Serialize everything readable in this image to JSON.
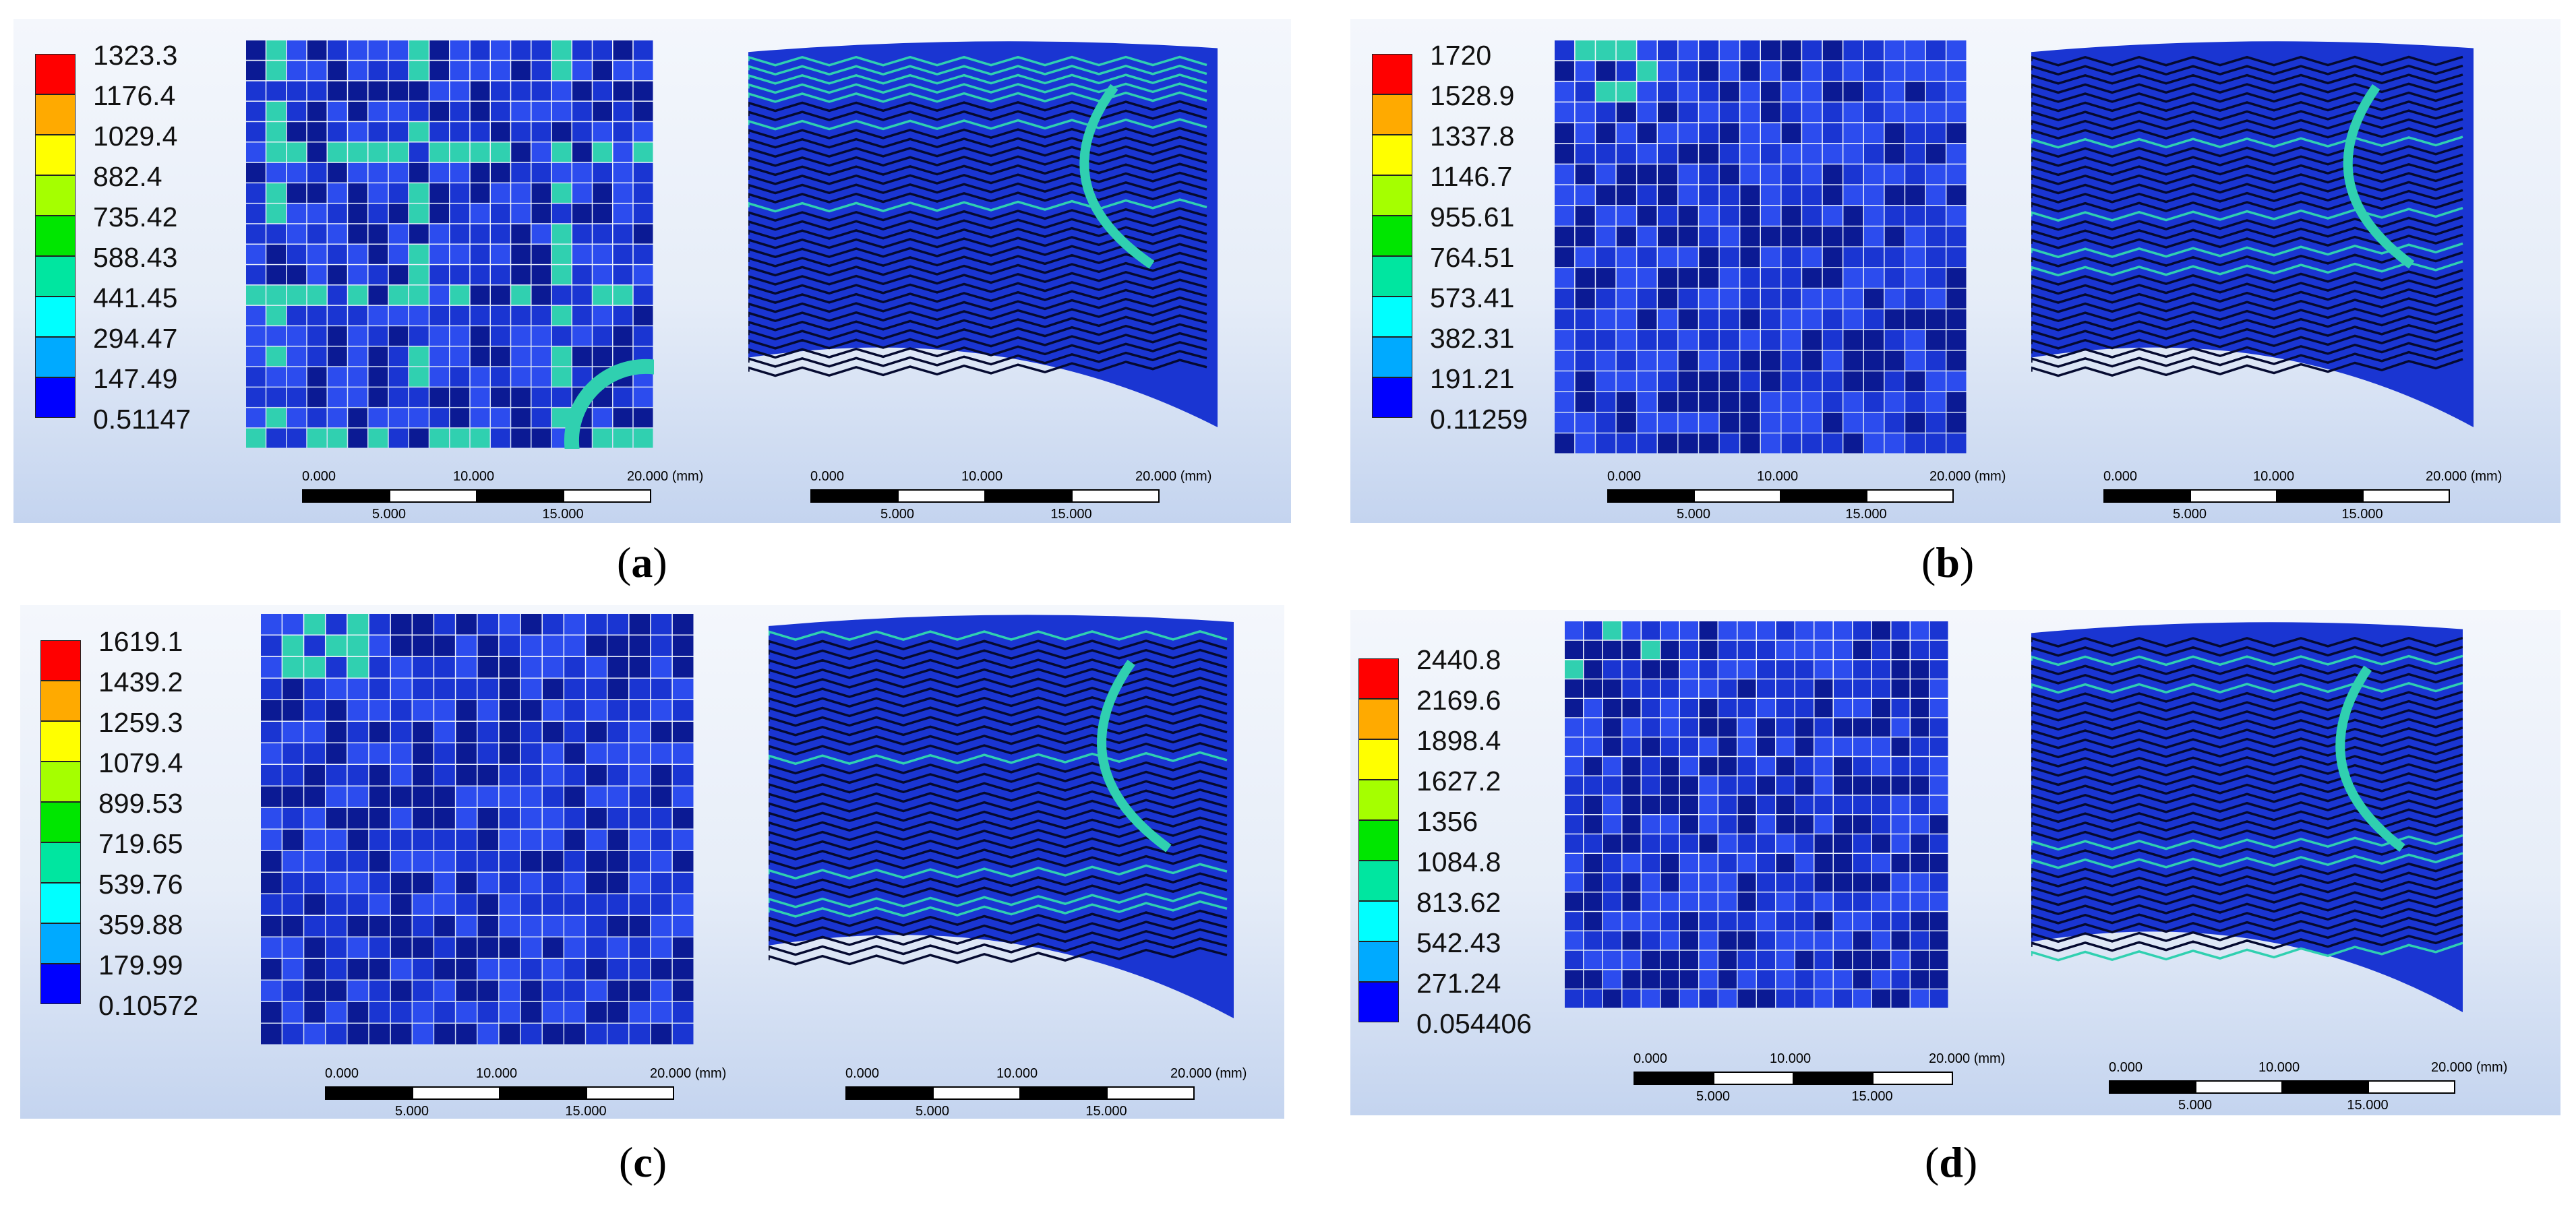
{
  "colorbar_colors": [
    "#ff0000",
    "#ffaa00",
    "#ffff00",
    "#a5ff00",
    "#00e600",
    "#00e6a0",
    "#00ffff",
    "#00aaff",
    "#0000ff"
  ],
  "mesh_colors": {
    "base": "#1a35d2",
    "light": "#2c4cee",
    "dark": "#0b1a94",
    "accent": "#30d0b0",
    "edge": "#050a30"
  },
  "scale_labels": {
    "top_left": "0.000",
    "top_mid": "10.000",
    "top_right": "20.000 (mm)",
    "bottom_left": "5.000",
    "bottom_right": "15.000"
  },
  "panels": [
    {
      "id": "a",
      "caption_letter": "a",
      "legend": [
        "1323.3",
        "1176.4",
        "1029.4",
        "882.4",
        "735.42",
        "588.43",
        "441.45",
        "294.47",
        "147.49",
        "0.51147"
      ]
    },
    {
      "id": "b",
      "caption_letter": "b",
      "legend": [
        "1720",
        "1528.9",
        "1337.8",
        "1146.7",
        "955.61",
        "764.51",
        "573.41",
        "382.31",
        "191.21",
        "0.11259"
      ]
    },
    {
      "id": "c",
      "caption_letter": "c",
      "legend": [
        "1619.1",
        "1439.2",
        "1259.3",
        "1079.4",
        "899.53",
        "719.65",
        "539.76",
        "359.88",
        "179.99",
        "0.10572"
      ]
    },
    {
      "id": "d",
      "caption_letter": "d",
      "legend": [
        "2440.8",
        "2169.6",
        "1898.4",
        "1627.2",
        "1356",
        "1084.8",
        "813.62",
        "542.43",
        "271.24",
        "0.054406"
      ]
    }
  ]
}
